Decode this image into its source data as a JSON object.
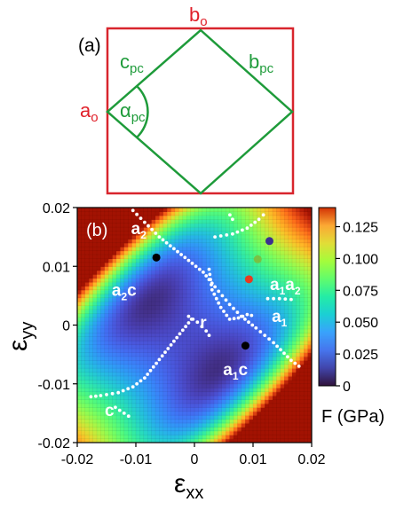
{
  "panel_a": {
    "label": "(a)",
    "labels": {
      "bo": "b",
      "bo_sub": "o",
      "ao": "a",
      "ao_sub": "o",
      "cpc": "c",
      "cpc_sub": "pc",
      "bpc": "b",
      "bpc_sub": "pc",
      "alpha": "α",
      "alpha_sub": "pc"
    },
    "colors": {
      "orthorhombic": "#e0202a",
      "pseudocubic": "#1e9b3a"
    }
  },
  "chart_data": {
    "type": "heatmap",
    "panel_label": "(b)",
    "xlabel": "ε",
    "xlabel_sub": "xx",
    "ylabel": "ε",
    "ylabel_sub": "yy",
    "xlim": [
      -0.02,
      0.02
    ],
    "ylim": [
      -0.02,
      0.02
    ],
    "xticks": [
      -0.02,
      -0.01,
      0,
      0.01,
      0.02
    ],
    "yticks": [
      -0.02,
      -0.01,
      0,
      0.01,
      0.02
    ],
    "xtick_labels": [
      "-0.02",
      "-0.01",
      "0",
      "0.01",
      "0.02"
    ],
    "ytick_labels": [
      "-0.02",
      "-0.01",
      "0",
      "0.01",
      "0.02"
    ],
    "colorbar": {
      "label": "F (GPa)",
      "min": 0,
      "max": 0.14,
      "ticks": [
        0,
        0.025,
        0.05,
        0.075,
        0.1,
        0.125
      ],
      "tick_labels": [
        "0",
        "0.025",
        "0.050",
        "0.075",
        "0.100",
        "0.125"
      ],
      "colormap": "turbo"
    },
    "energy_surface": {
      "minima": [
        [
          -0.006,
          0.0115
        ],
        [
          0.0085,
          -0.0035
        ]
      ],
      "description_free": true
    },
    "regions": [
      {
        "label": "a",
        "sub": "2",
        "x": -0.0095,
        "y": 0.0155
      },
      {
        "label": "a",
        "sub": "2",
        "prefix": "",
        "suffix": "c",
        "x": -0.012,
        "y": 0.005
      },
      {
        "label": "r",
        "sub": "",
        "x": 0.0015,
        "y": -0.0005
      },
      {
        "label": "a",
        "sub": "1",
        "x": 0.0145,
        "y": 0.0005
      },
      {
        "label": "a",
        "sub": "1",
        "suffix": "c",
        "x": 0.007,
        "y": -0.0085
      },
      {
        "label": "a",
        "sub": "1",
        "suffix": "a",
        "sub2": "2",
        "x": 0.0155,
        "y": 0.006
      },
      {
        "label": "c",
        "sub": "",
        "x": -0.0145,
        "y": -0.0155
      }
    ],
    "black_points": [
      [
        -0.0065,
        0.0115
      ],
      [
        0.0087,
        -0.0035
      ]
    ],
    "colored_points": [
      {
        "x": 0.0128,
        "y": 0.0143,
        "color": "#3b2f8f"
      },
      {
        "x": 0.0108,
        "y": 0.0112,
        "color": "#7ac143"
      },
      {
        "x": 0.0093,
        "y": 0.0078,
        "color": "#e83a1f"
      }
    ],
    "boundaries": [
      [
        [
          -0.0105,
          0.0195
        ],
        [
          -0.0085,
          0.0175
        ],
        [
          -0.006,
          0.015
        ],
        [
          -0.0035,
          0.013
        ],
        [
          -0.001,
          0.011
        ],
        [
          0.0015,
          0.009
        ],
        [
          0.0035,
          0.0065
        ],
        [
          0.006,
          0.0035
        ],
        [
          0.008,
          0.0015
        ],
        [
          0.0105,
          -0.0005
        ],
        [
          0.0135,
          -0.003
        ],
        [
          0.0165,
          -0.006
        ],
        [
          0.0185,
          -0.0075
        ]
      ],
      [
        [
          0.0035,
          0.015
        ],
        [
          0.0065,
          0.0155
        ],
        [
          0.009,
          0.0165
        ],
        [
          0.011,
          0.018
        ],
        [
          0.0125,
          0.0195
        ]
      ],
      [
        [
          0.0025,
          0.0095
        ],
        [
          0.003,
          0.006
        ],
        [
          0.0045,
          0.003
        ],
        [
          0.006,
          0.001
        ],
        [
          0.0075,
          0.0012
        ],
        [
          0.009,
          0.0018
        ],
        [
          0.0105,
          0.0015
        ]
      ],
      [
        [
          -0.001,
          0.0015
        ],
        [
          0.0005,
          0.0005
        ],
        [
          0.002,
          -0.001
        ],
        [
          0.003,
          -0.0025
        ]
      ],
      [
        [
          -0.0005,
          0.001
        ],
        [
          -0.0025,
          -0.0015
        ],
        [
          -0.0045,
          -0.004
        ],
        [
          -0.0065,
          -0.0065
        ],
        [
          -0.0085,
          -0.009
        ],
        [
          -0.0105,
          -0.0105
        ],
        [
          -0.013,
          -0.0115
        ],
        [
          -0.016,
          -0.012
        ],
        [
          -0.0185,
          -0.0123
        ]
      ],
      [
        [
          0.0065,
          0.018
        ],
        [
          0.0056,
          0.0195
        ]
      ],
      [
        [
          0.0125,
          0.0045
        ],
        [
          0.0145,
          0.0045
        ],
        [
          0.0175,
          0.0043
        ]
      ],
      [
        [
          -0.0135,
          -0.014
        ],
        [
          -0.0105,
          -0.016
        ]
      ]
    ]
  }
}
